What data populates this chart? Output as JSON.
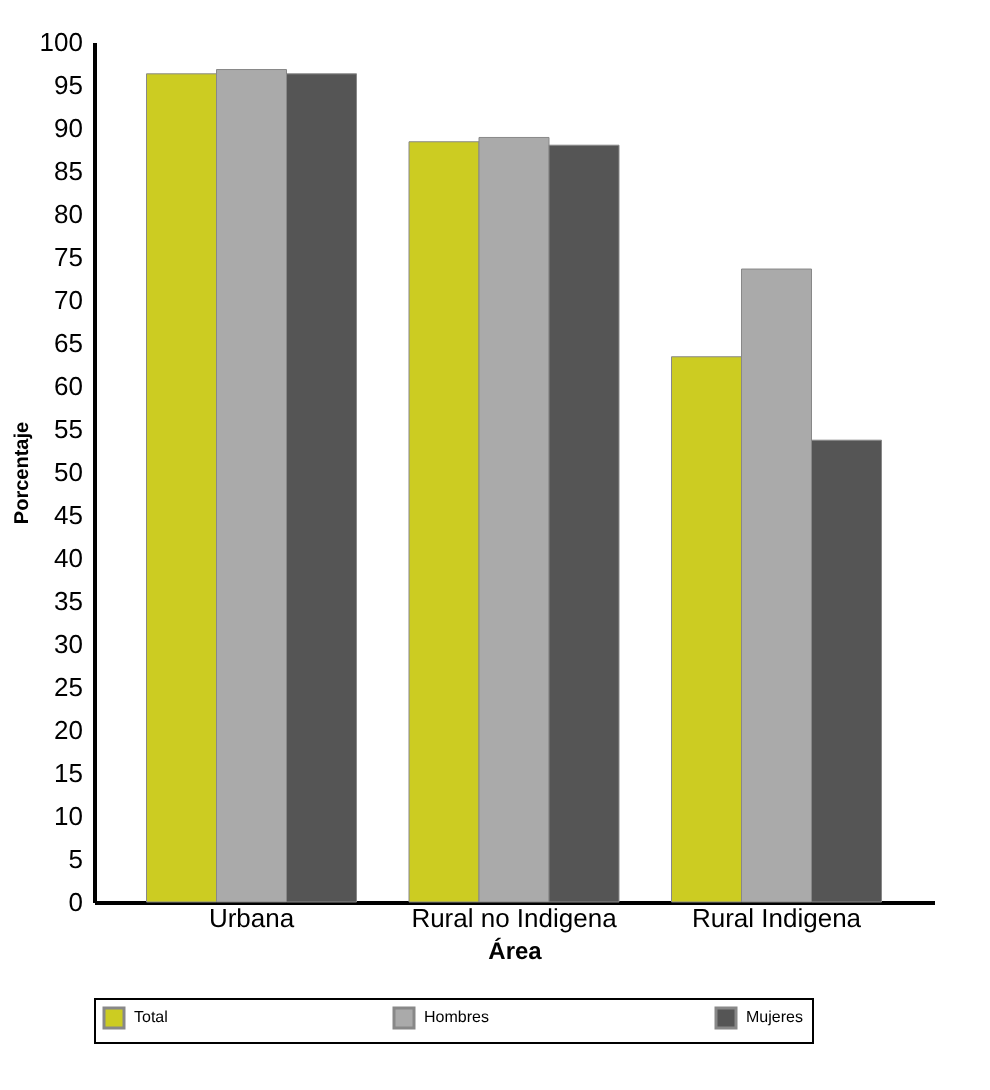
{
  "chart_data": {
    "type": "bar",
    "xlabel": "Área",
    "ylabel": "Porcentaje",
    "categories": [
      "Urbana",
      "Rural no Indigena",
      "Rural Indigena"
    ],
    "series": [
      {
        "name": "Total",
        "color": "#cccc22",
        "values": [
          96.3,
          88.4,
          63.4
        ]
      },
      {
        "name": "Hombres",
        "color": "#aaaaaa",
        "values": [
          96.8,
          88.9,
          73.6
        ]
      },
      {
        "name": "Mujeres",
        "color": "#555555",
        "values": [
          96.3,
          88.0,
          53.7
        ]
      }
    ],
    "ylim": [
      0,
      100
    ],
    "yticks": [
      0,
      5,
      10,
      15,
      20,
      25,
      30,
      35,
      40,
      45,
      50,
      55,
      60,
      65,
      70,
      75,
      80,
      85,
      90,
      95,
      100
    ],
    "grid": false,
    "legend": "bottom"
  }
}
